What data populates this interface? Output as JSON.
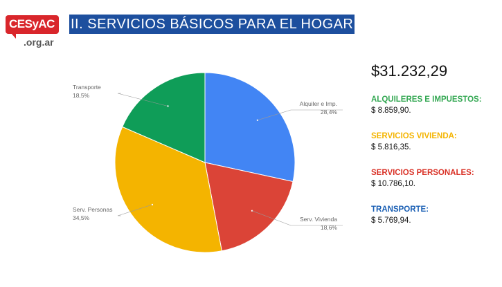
{
  "logo": {
    "brand": "CESyAC",
    "domain": ".org.ar"
  },
  "title": "II. SERVICIOS BÁSICOS PARA EL HOGAR",
  "chart_data": {
    "type": "pie",
    "slices": [
      {
        "label": "Alquiler e Imp.",
        "value": 28.4,
        "pct_label": "28,4%",
        "color": "#4285f4"
      },
      {
        "label": "Serv. Vivienda",
        "value": 18.6,
        "pct_label": "18,6%",
        "color": "#db4437"
      },
      {
        "label": "Serv. Personas",
        "value": 34.5,
        "pct_label": "34,5%",
        "color": "#f4b400"
      },
      {
        "label": "Transporte",
        "value": 18.5,
        "pct_label": "18,5%",
        "color": "#0f9d58"
      }
    ]
  },
  "summary": {
    "total": "$31.232,29",
    "categories": [
      {
        "name": "ALQUILERES E IMPUESTOS:",
        "amount": "$ 8.859,90.",
        "color": "#34a853"
      },
      {
        "name": "SERVICIOS VIVIENDA:",
        "amount": "$ 5.816,35.",
        "color": "#f4b400"
      },
      {
        "name": "SERVICIOS PERSONALES:",
        "amount": "$ 10.786,10.",
        "color": "#d93025"
      },
      {
        "name": "TRANSPORTE:",
        "amount": "$ 5.769,94.",
        "color": "#1a5fb4"
      }
    ]
  }
}
